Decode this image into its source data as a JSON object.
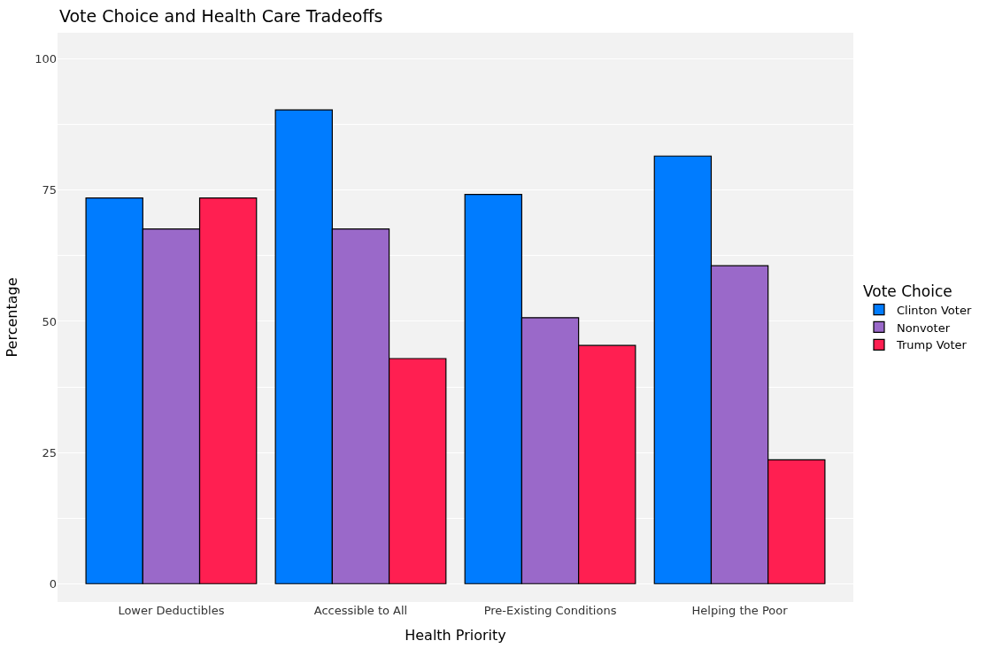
{
  "chart_data": {
    "type": "bar",
    "title": "Vote Choice and Health Care Tradeoffs",
    "xlabel": "Health Priority",
    "ylabel": "Percentage",
    "legend_title": "Vote Choice",
    "categories": [
      "Lower Deductibles",
      "Accessible to All",
      "Pre-Existing Conditions",
      "Helping the Poor"
    ],
    "series": [
      {
        "name": "Clinton Voter",
        "color": "#007cff",
        "values": [
          73.5,
          90.3,
          74.2,
          81.5
        ]
      },
      {
        "name": "Nonvoter",
        "color": "#9a69c9",
        "values": [
          67.6,
          67.6,
          50.7,
          60.6
        ]
      },
      {
        "name": "Trump Voter",
        "color": "#ff1f51",
        "values": [
          73.5,
          42.9,
          45.4,
          23.6
        ]
      }
    ],
    "ylim": [
      -3.5,
      105
    ],
    "yticks": [
      0,
      {
        "value": 12.5,
        "label": null
      },
      25,
      {
        "value": 37.5,
        "label": null
      },
      50,
      {
        "value": 62.5,
        "label": null
      },
      75,
      {
        "value": 87.5,
        "label": null
      },
      100
    ],
    "grid": "y",
    "legend": "right"
  }
}
